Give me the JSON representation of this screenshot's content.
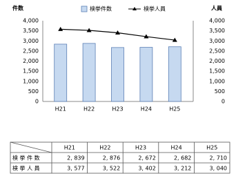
{
  "chart_data": {
    "type": "bar-line",
    "ylabel": "件数",
    "y2label": "人員",
    "categories": [
      "H21",
      "H22",
      "H23",
      "H24",
      "H25"
    ],
    "series": [
      {
        "name": "検挙件数",
        "type": "bar",
        "color": "#c6d9f0",
        "values": [
          2839,
          2876,
          2672,
          2682,
          2710
        ]
      },
      {
        "name": "検挙人員",
        "type": "line",
        "axis": "y2",
        "color": "#000000",
        "values": [
          3577,
          3522,
          3402,
          3212,
          3040
        ]
      }
    ],
    "ylim": [
      0,
      4000
    ],
    "yticks": [
      0,
      500,
      {
        "value": 1000,
        "label": "1,000"
      },
      {
        "value": 1500,
        "label": "1,500"
      },
      {
        "value": 2000,
        "label": "2,000"
      },
      {
        "value": 2500,
        "label": "2,500"
      },
      {
        "value": 3000,
        "label": "3,000"
      },
      {
        "value": 3500,
        "label": "3,500"
      },
      {
        "value": 4000,
        "label": "4,000"
      }
    ],
    "y2lim": [
      0,
      4000
    ],
    "y2ticks": [
      0,
      500,
      {
        "value": 1000,
        "label": "1,000"
      },
      {
        "value": 1500,
        "label": "1,500"
      },
      {
        "value": 2000,
        "label": "2,000"
      },
      {
        "value": 2500,
        "label": "2,500"
      },
      {
        "value": 3000,
        "label": "3,000"
      },
      {
        "value": 3500,
        "label": "3,500"
      },
      {
        "value": 4000,
        "label": "4,000"
      }
    ],
    "grid": false
  },
  "table": {
    "header": [
      "H21",
      "H22",
      "H23",
      "H24",
      "H25"
    ],
    "rows": [
      {
        "label": "検 挙 件 数",
        "cells": [
          "2, 839",
          "2, 876",
          "2, 672",
          "2, 682",
          "2, 710"
        ]
      },
      {
        "label": "検 挙 人 員",
        "cells": [
          "3, 577",
          "3, 522",
          "3, 402",
          "3, 212",
          "3, 040"
        ]
      }
    ]
  }
}
